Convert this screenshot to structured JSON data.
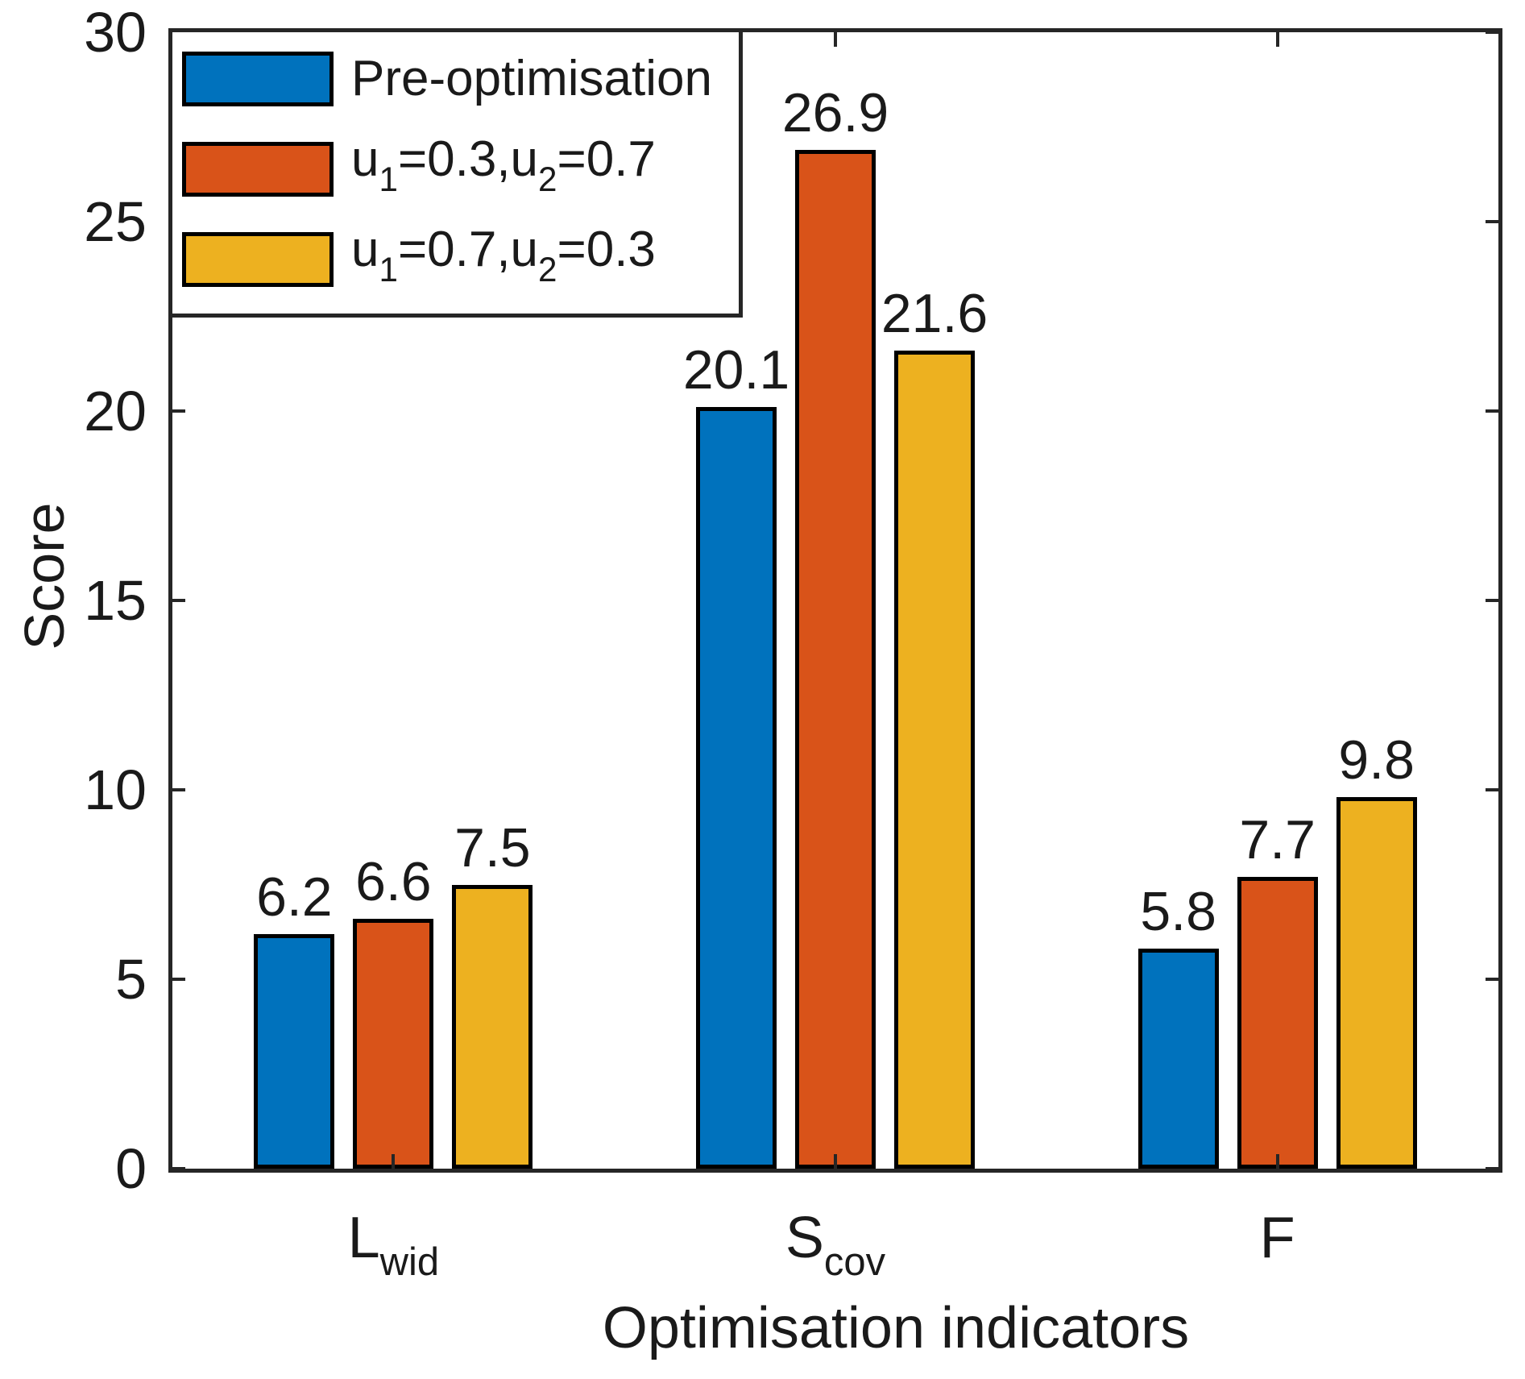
{
  "chart_data": {
    "type": "bar",
    "title": "",
    "xlabel": "Optimisation indicators",
    "ylabel": "Score",
    "ylim": [
      0,
      30
    ],
    "yticks": [
      0,
      5,
      10,
      15,
      20,
      25,
      30
    ],
    "grid": false,
    "legend_position": "top-left",
    "axis_color": "#262626",
    "bar_edge_color": "#000000",
    "categories": [
      {
        "main": "L",
        "sub": "wid"
      },
      {
        "main": "S",
        "sub": "cov"
      },
      {
        "main": "F",
        "sub": ""
      }
    ],
    "series": [
      {
        "name": "Pre-optimisation",
        "name_parts": [
          {
            "text": "Pre-optimisation"
          }
        ],
        "color": "#0072BD",
        "values": [
          6.2,
          20.1,
          5.8
        ],
        "labels": [
          "6.2",
          "20.1",
          "5.8"
        ]
      },
      {
        "name": "u1=0.3,u2=0.7",
        "name_parts": [
          {
            "text": "u"
          },
          {
            "sub": "1"
          },
          {
            "text": "=0.3,u"
          },
          {
            "sub": "2"
          },
          {
            "text": "=0.7"
          }
        ],
        "color": "#D95319",
        "values": [
          6.6,
          26.9,
          7.7
        ],
        "labels": [
          "6.6",
          "26.9",
          "7.7"
        ]
      },
      {
        "name": "u1=0.7,u2=0.3",
        "name_parts": [
          {
            "text": "u"
          },
          {
            "sub": "1"
          },
          {
            "text": "=0.7,u"
          },
          {
            "sub": "2"
          },
          {
            "text": "=0.3"
          }
        ],
        "color": "#EDB120",
        "values": [
          7.5,
          21.6,
          9.8
        ],
        "labels": [
          "7.5",
          "21.6",
          "9.8"
        ]
      }
    ]
  }
}
